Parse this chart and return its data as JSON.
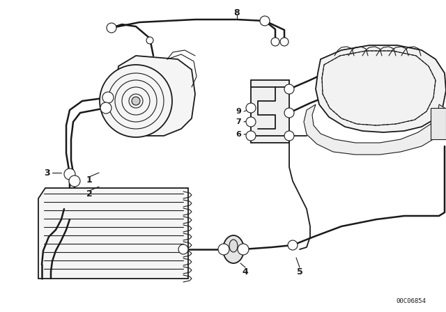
{
  "bg_color": "#ffffff",
  "line_color": "#1a1a1a",
  "catalog_number": "00C06854",
  "lw_thin": 0.8,
  "lw_med": 1.3,
  "lw_thick": 1.8
}
